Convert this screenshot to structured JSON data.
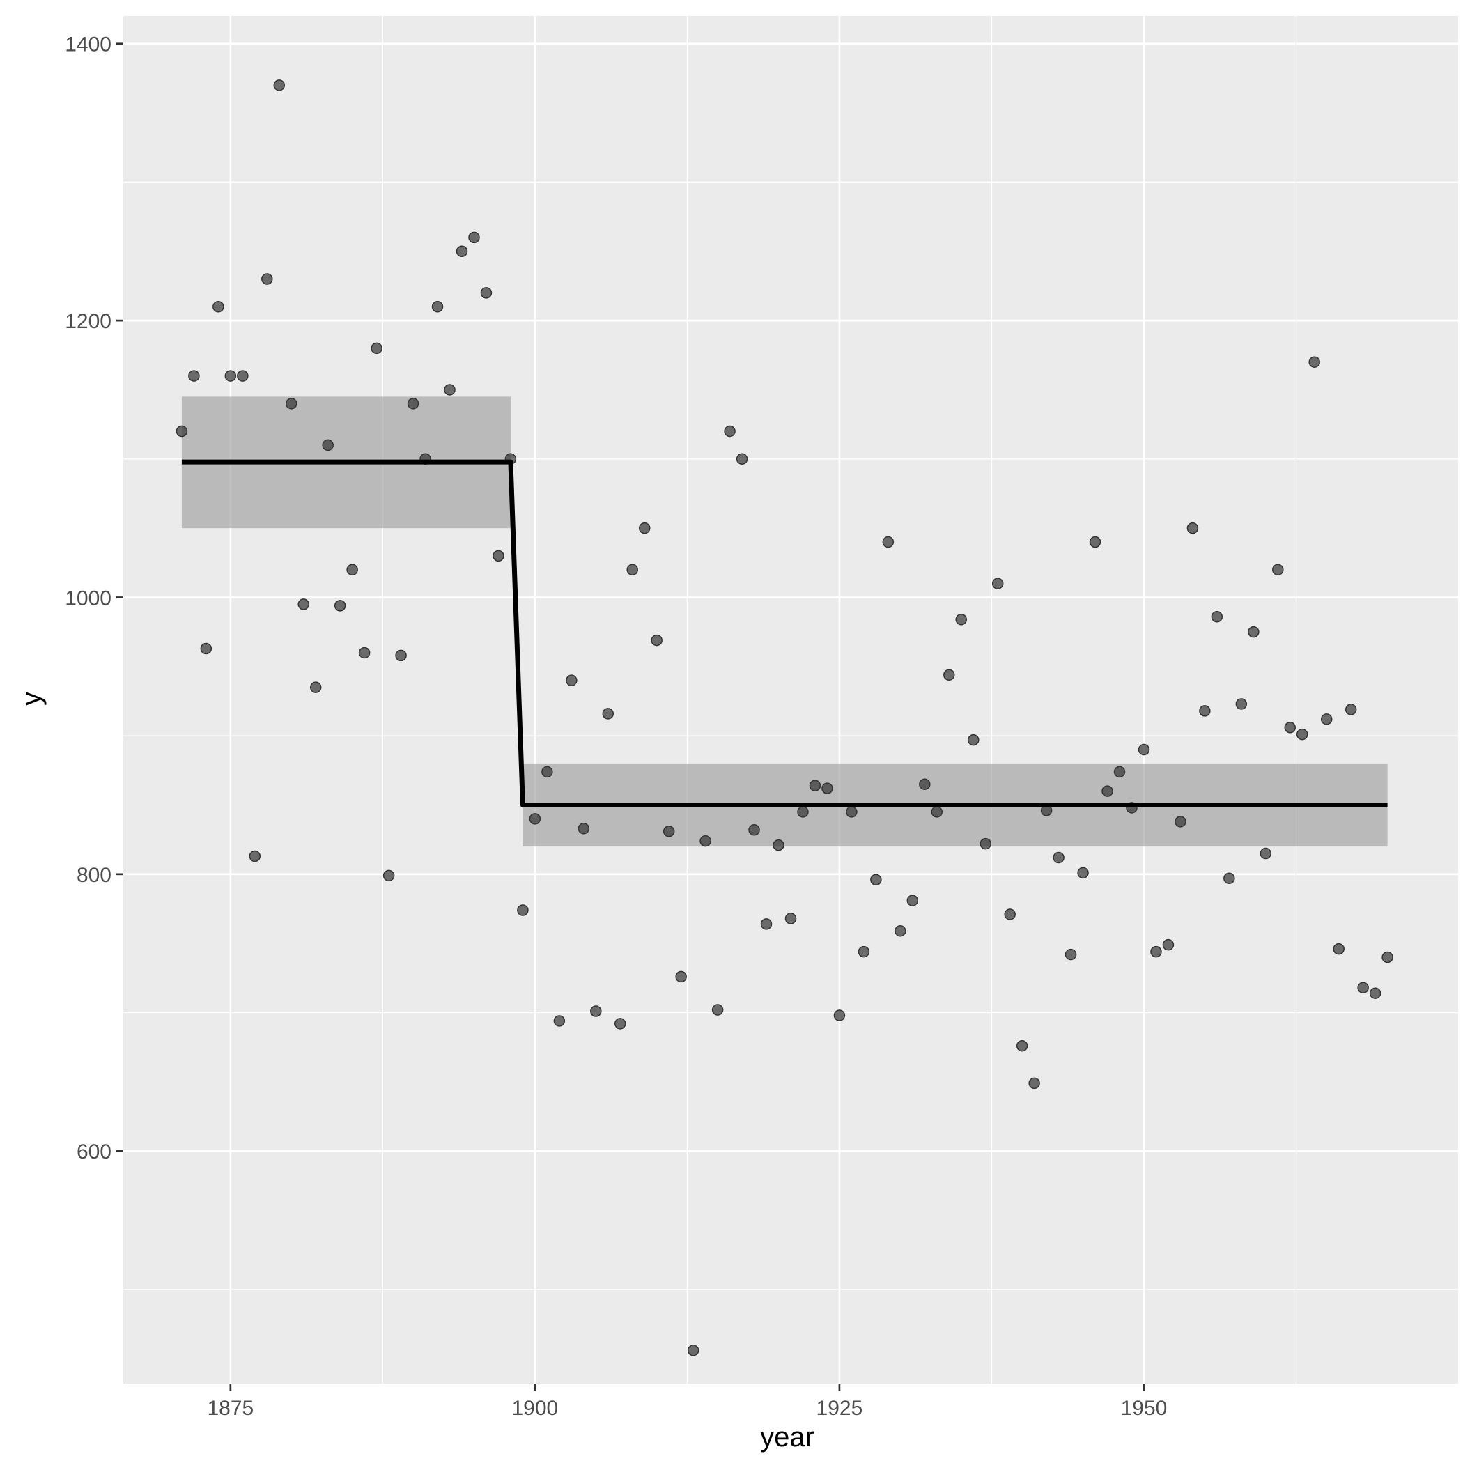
{
  "chart_data": {
    "type": "scatter",
    "title": "",
    "xlabel": "year",
    "ylabel": "y",
    "xlim": [
      1866.2,
      1975.8
    ],
    "ylim": [
      432,
      1420
    ],
    "x_ticks": [
      1875,
      1900,
      1925,
      1950
    ],
    "x_tick_labels": [
      "1875",
      "1900",
      "1925",
      "1950"
    ],
    "y_ticks": [
      600,
      800,
      1000,
      1200,
      1400
    ],
    "y_tick_labels": [
      "600",
      "800",
      "1000",
      "1200",
      "1400"
    ],
    "grid": true,
    "colors": {
      "panel": "#ebebeb",
      "grid": "#ffffff",
      "points": "#333333",
      "fit_line": "#000000",
      "ribbon": "#999999"
    },
    "points": [
      {
        "x": 1871,
        "y": 1120
      },
      {
        "x": 1872,
        "y": 1160
      },
      {
        "x": 1873,
        "y": 963
      },
      {
        "x": 1874,
        "y": 1210
      },
      {
        "x": 1875,
        "y": 1160
      },
      {
        "x": 1876,
        "y": 1160
      },
      {
        "x": 1877,
        "y": 813
      },
      {
        "x": 1878,
        "y": 1230
      },
      {
        "x": 1879,
        "y": 1370
      },
      {
        "x": 1880,
        "y": 1140
      },
      {
        "x": 1881,
        "y": 995
      },
      {
        "x": 1882,
        "y": 935
      },
      {
        "x": 1883,
        "y": 1110
      },
      {
        "x": 1884,
        "y": 994
      },
      {
        "x": 1885,
        "y": 1020
      },
      {
        "x": 1886,
        "y": 960
      },
      {
        "x": 1887,
        "y": 1180
      },
      {
        "x": 1888,
        "y": 799
      },
      {
        "x": 1889,
        "y": 958
      },
      {
        "x": 1890,
        "y": 1140
      },
      {
        "x": 1891,
        "y": 1100
      },
      {
        "x": 1892,
        "y": 1210
      },
      {
        "x": 1893,
        "y": 1150
      },
      {
        "x": 1894,
        "y": 1250
      },
      {
        "x": 1895,
        "y": 1260
      },
      {
        "x": 1896,
        "y": 1220
      },
      {
        "x": 1897,
        "y": 1030
      },
      {
        "x": 1898,
        "y": 1100
      },
      {
        "x": 1899,
        "y": 774
      },
      {
        "x": 1900,
        "y": 840
      },
      {
        "x": 1901,
        "y": 874
      },
      {
        "x": 1902,
        "y": 694
      },
      {
        "x": 1903,
        "y": 940
      },
      {
        "x": 1904,
        "y": 833
      },
      {
        "x": 1905,
        "y": 701
      },
      {
        "x": 1906,
        "y": 916
      },
      {
        "x": 1907,
        "y": 692
      },
      {
        "x": 1908,
        "y": 1020
      },
      {
        "x": 1909,
        "y": 1050
      },
      {
        "x": 1910,
        "y": 969
      },
      {
        "x": 1911,
        "y": 831
      },
      {
        "x": 1912,
        "y": 726
      },
      {
        "x": 1913,
        "y": 456
      },
      {
        "x": 1914,
        "y": 824
      },
      {
        "x": 1915,
        "y": 702
      },
      {
        "x": 1916,
        "y": 1120
      },
      {
        "x": 1917,
        "y": 1100
      },
      {
        "x": 1918,
        "y": 832
      },
      {
        "x": 1919,
        "y": 764
      },
      {
        "x": 1920,
        "y": 821
      },
      {
        "x": 1921,
        "y": 768
      },
      {
        "x": 1922,
        "y": 845
      },
      {
        "x": 1923,
        "y": 864
      },
      {
        "x": 1924,
        "y": 862
      },
      {
        "x": 1925,
        "y": 698
      },
      {
        "x": 1926,
        "y": 845
      },
      {
        "x": 1927,
        "y": 744
      },
      {
        "x": 1928,
        "y": 796
      },
      {
        "x": 1929,
        "y": 1040
      },
      {
        "x": 1930,
        "y": 759
      },
      {
        "x": 1931,
        "y": 781
      },
      {
        "x": 1932,
        "y": 865
      },
      {
        "x": 1933,
        "y": 845
      },
      {
        "x": 1934,
        "y": 944
      },
      {
        "x": 1935,
        "y": 984
      },
      {
        "x": 1936,
        "y": 897
      },
      {
        "x": 1937,
        "y": 822
      },
      {
        "x": 1938,
        "y": 1010
      },
      {
        "x": 1939,
        "y": 771
      },
      {
        "x": 1940,
        "y": 676
      },
      {
        "x": 1941,
        "y": 649
      },
      {
        "x": 1942,
        "y": 846
      },
      {
        "x": 1943,
        "y": 812
      },
      {
        "x": 1944,
        "y": 742
      },
      {
        "x": 1945,
        "y": 801
      },
      {
        "x": 1946,
        "y": 1040
      },
      {
        "x": 1947,
        "y": 860
      },
      {
        "x": 1948,
        "y": 874
      },
      {
        "x": 1949,
        "y": 848
      },
      {
        "x": 1950,
        "y": 890
      },
      {
        "x": 1951,
        "y": 744
      },
      {
        "x": 1952,
        "y": 749
      },
      {
        "x": 1953,
        "y": 838
      },
      {
        "x": 1954,
        "y": 1050
      },
      {
        "x": 1955,
        "y": 918
      },
      {
        "x": 1956,
        "y": 986
      },
      {
        "x": 1957,
        "y": 797
      },
      {
        "x": 1958,
        "y": 923
      },
      {
        "x": 1959,
        "y": 975
      },
      {
        "x": 1960,
        "y": 815
      },
      {
        "x": 1961,
        "y": 1020
      },
      {
        "x": 1962,
        "y": 906
      },
      {
        "x": 1963,
        "y": 901
      },
      {
        "x": 1964,
        "y": 1170
      },
      {
        "x": 1965,
        "y": 912
      },
      {
        "x": 1966,
        "y": 746
      },
      {
        "x": 1967,
        "y": 919
      },
      {
        "x": 1968,
        "y": 718
      },
      {
        "x": 1969,
        "y": 714
      },
      {
        "x": 1970,
        "y": 740
      }
    ],
    "fit_line": [
      {
        "x": 1871,
        "y": 1097.8
      },
      {
        "x": 1898,
        "y": 1097.8
      },
      {
        "x": 1899,
        "y": 849.97
      },
      {
        "x": 1970,
        "y": 849.97
      }
    ],
    "ribbons": [
      {
        "x_start": 1871,
        "x_end": 1898,
        "lower": 1050,
        "upper": 1145
      },
      {
        "x_start": 1899,
        "x_end": 1970,
        "lower": 820,
        "upper": 880
      }
    ]
  }
}
